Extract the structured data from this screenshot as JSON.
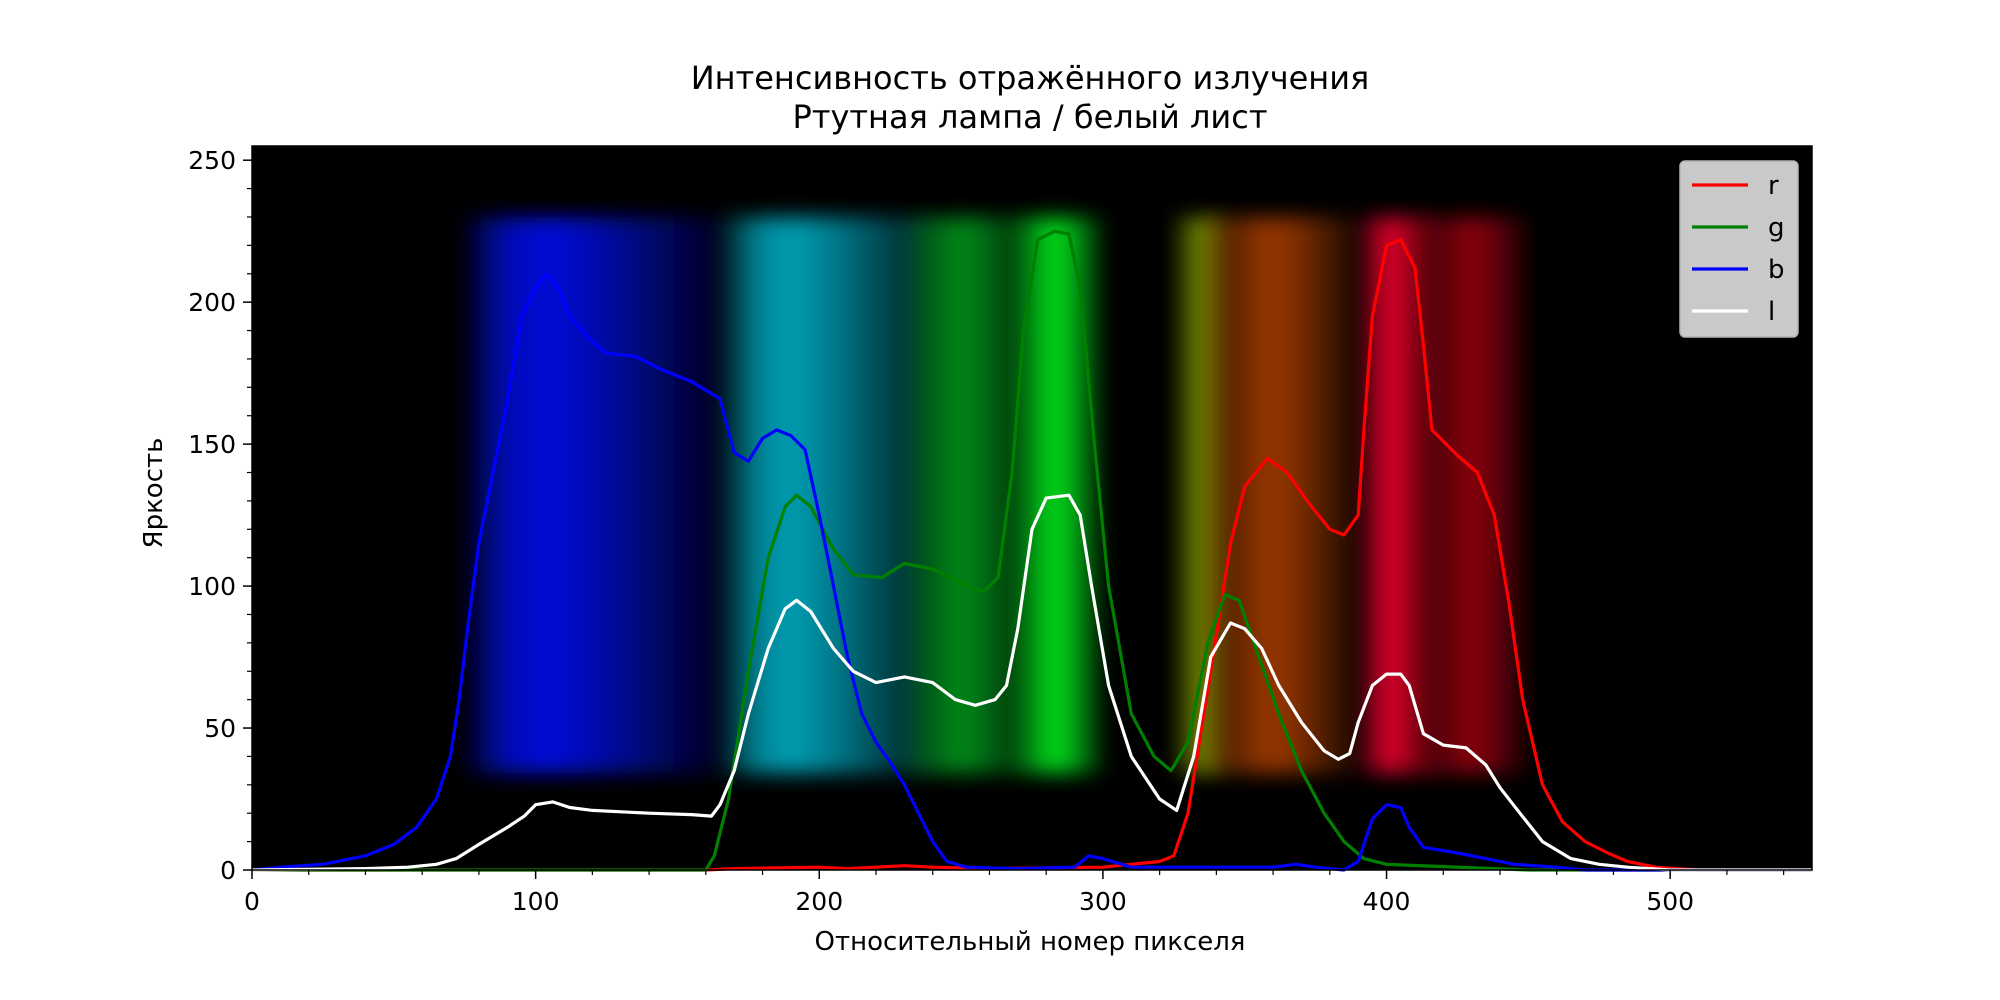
{
  "chart_data": {
    "type": "line",
    "title": "Интенсивность отражённого излучения",
    "subtitle": "Ртутная лампа / белый лист",
    "xlabel": "Относительный номер пикселя",
    "ylabel": "Яркость",
    "xlim": [
      0,
      550
    ],
    "ylim": [
      0,
      255
    ],
    "xticks": [
      0,
      100,
      200,
      300,
      400,
      500
    ],
    "yticks": [
      0,
      50,
      100,
      150,
      200,
      250
    ],
    "xtick_labels": [
      "0",
      "100",
      "200",
      "300",
      "400",
      "500"
    ],
    "ytick_labels": [
      "0",
      "50",
      "100",
      "150",
      "200",
      "250"
    ],
    "legend_position": "top-right",
    "grid": false,
    "background": "spectrum photograph on black",
    "series": [
      {
        "name": "r",
        "color": "#ff0000",
        "points": [
          [
            0,
            0
          ],
          [
            160,
            0
          ],
          [
            170,
            0.5
          ],
          [
            200,
            1
          ],
          [
            210,
            0.5
          ],
          [
            230,
            1.5
          ],
          [
            240,
            1
          ],
          [
            260,
            0.5
          ],
          [
            300,
            1
          ],
          [
            310,
            2
          ],
          [
            320,
            3
          ],
          [
            325,
            5
          ],
          [
            330,
            20
          ],
          [
            338,
            70
          ],
          [
            345,
            115
          ],
          [
            350,
            135
          ],
          [
            358,
            145
          ],
          [
            365,
            140
          ],
          [
            372,
            130
          ],
          [
            380,
            120
          ],
          [
            385,
            118
          ],
          [
            390,
            125
          ],
          [
            392,
            155
          ],
          [
            395,
            195
          ],
          [
            400,
            220
          ],
          [
            405,
            222
          ],
          [
            410,
            212
          ],
          [
            413,
            185
          ],
          [
            416,
            155
          ],
          [
            425,
            146
          ],
          [
            432,
            140
          ],
          [
            438,
            125
          ],
          [
            443,
            95
          ],
          [
            448,
            60
          ],
          [
            455,
            30
          ],
          [
            462,
            17
          ],
          [
            470,
            10
          ],
          [
            478,
            6
          ],
          [
            485,
            3
          ],
          [
            495,
            1
          ],
          [
            510,
            0
          ],
          [
            550,
            0
          ]
        ]
      },
      {
        "name": "g",
        "color": "#008000",
        "points": [
          [
            0,
            0
          ],
          [
            160,
            0
          ],
          [
            163,
            5
          ],
          [
            168,
            25
          ],
          [
            175,
            70
          ],
          [
            182,
            110
          ],
          [
            188,
            128
          ],
          [
            192,
            132
          ],
          [
            197,
            128
          ],
          [
            205,
            113
          ],
          [
            212,
            104
          ],
          [
            222,
            103
          ],
          [
            230,
            108
          ],
          [
            240,
            106
          ],
          [
            252,
            100
          ],
          [
            258,
            98
          ],
          [
            263,
            103
          ],
          [
            268,
            140
          ],
          [
            272,
            190
          ],
          [
            277,
            222
          ],
          [
            283,
            225
          ],
          [
            288,
            224
          ],
          [
            292,
            205
          ],
          [
            297,
            150
          ],
          [
            302,
            100
          ],
          [
            310,
            55
          ],
          [
            318,
            40
          ],
          [
            324,
            35
          ],
          [
            330,
            45
          ],
          [
            337,
            80
          ],
          [
            343,
            97
          ],
          [
            348,
            95
          ],
          [
            355,
            75
          ],
          [
            362,
            55
          ],
          [
            370,
            35
          ],
          [
            378,
            20
          ],
          [
            385,
            10
          ],
          [
            392,
            4
          ],
          [
            400,
            2
          ],
          [
            450,
            0
          ],
          [
            550,
            0
          ]
        ]
      },
      {
        "name": "b",
        "color": "#0000ff",
        "points": [
          [
            0,
            0
          ],
          [
            10,
            1
          ],
          [
            25,
            2
          ],
          [
            40,
            5
          ],
          [
            50,
            9
          ],
          [
            58,
            15
          ],
          [
            65,
            25
          ],
          [
            70,
            40
          ],
          [
            73,
            60
          ],
          [
            76,
            85
          ],
          [
            80,
            115
          ],
          [
            85,
            140
          ],
          [
            90,
            165
          ],
          [
            95,
            195
          ],
          [
            100,
            205
          ],
          [
            104,
            210
          ],
          [
            108,
            205
          ],
          [
            112,
            195
          ],
          [
            118,
            188
          ],
          [
            125,
            182
          ],
          [
            135,
            181
          ],
          [
            145,
            176
          ],
          [
            155,
            172
          ],
          [
            165,
            166
          ],
          [
            170,
            147
          ],
          [
            175,
            144
          ],
          [
            180,
            152
          ],
          [
            185,
            155
          ],
          [
            190,
            153
          ],
          [
            195,
            148
          ],
          [
            200,
            125
          ],
          [
            205,
            100
          ],
          [
            210,
            75
          ],
          [
            215,
            55
          ],
          [
            220,
            45
          ],
          [
            225,
            38
          ],
          [
            230,
            30
          ],
          [
            235,
            20
          ],
          [
            240,
            10
          ],
          [
            245,
            3
          ],
          [
            252,
            1
          ],
          [
            270,
            0.5
          ],
          [
            290,
            1
          ],
          [
            295,
            5
          ],
          [
            300,
            4
          ],
          [
            310,
            1
          ],
          [
            360,
            1
          ],
          [
            368,
            2
          ],
          [
            375,
            1
          ],
          [
            385,
            0
          ],
          [
            390,
            3
          ],
          [
            395,
            18
          ],
          [
            400,
            23
          ],
          [
            405,
            22
          ],
          [
            408,
            15
          ],
          [
            413,
            8
          ],
          [
            425,
            6
          ],
          [
            435,
            4
          ],
          [
            445,
            2
          ],
          [
            460,
            1
          ],
          [
            470,
            0
          ],
          [
            550,
            0
          ]
        ]
      },
      {
        "name": "l",
        "color": "#ffffff",
        "points": [
          [
            0,
            0
          ],
          [
            40,
            0.5
          ],
          [
            55,
            1
          ],
          [
            65,
            2
          ],
          [
            72,
            4
          ],
          [
            80,
            9
          ],
          [
            90,
            15
          ],
          [
            96,
            19
          ],
          [
            100,
            23
          ],
          [
            106,
            24
          ],
          [
            112,
            22
          ],
          [
            120,
            21
          ],
          [
            140,
            20
          ],
          [
            155,
            19.5
          ],
          [
            162,
            19
          ],
          [
            165,
            23
          ],
          [
            170,
            35
          ],
          [
            175,
            55
          ],
          [
            182,
            78
          ],
          [
            188,
            92
          ],
          [
            192,
            95
          ],
          [
            197,
            91
          ],
          [
            205,
            78
          ],
          [
            212,
            70
          ],
          [
            220,
            66
          ],
          [
            230,
            68
          ],
          [
            240,
            66
          ],
          [
            248,
            60
          ],
          [
            255,
            58
          ],
          [
            262,
            60
          ],
          [
            266,
            65
          ],
          [
            270,
            85
          ],
          [
            275,
            120
          ],
          [
            280,
            131
          ],
          [
            288,
            132
          ],
          [
            292,
            125
          ],
          [
            296,
            100
          ],
          [
            302,
            65
          ],
          [
            310,
            40
          ],
          [
            320,
            25
          ],
          [
            326,
            21
          ],
          [
            332,
            40
          ],
          [
            338,
            75
          ],
          [
            345,
            87
          ],
          [
            350,
            85
          ],
          [
            356,
            78
          ],
          [
            362,
            65
          ],
          [
            370,
            52
          ],
          [
            378,
            42
          ],
          [
            383,
            39
          ],
          [
            387,
            41
          ],
          [
            390,
            52
          ],
          [
            395,
            65
          ],
          [
            400,
            69
          ],
          [
            405,
            69
          ],
          [
            408,
            65
          ],
          [
            413,
            48
          ],
          [
            420,
            44
          ],
          [
            428,
            43
          ],
          [
            435,
            37
          ],
          [
            440,
            29
          ],
          [
            447,
            20
          ],
          [
            455,
            10
          ],
          [
            465,
            4
          ],
          [
            475,
            2
          ],
          [
            485,
            1
          ],
          [
            500,
            0
          ],
          [
            550,
            0
          ]
        ]
      }
    ],
    "spectrum_bands": [
      {
        "from": 75,
        "to": 165,
        "color": "#0010ff",
        "peak": 104
      },
      {
        "from": 165,
        "to": 240,
        "color": "#00b8d0",
        "peak": 190
      },
      {
        "from": 230,
        "to": 275,
        "color": "#00a020",
        "peak": 250
      },
      {
        "from": 268,
        "to": 300,
        "color": "#00ff20",
        "peak": 283
      },
      {
        "from": 325,
        "to": 345,
        "color": "#80a000",
        "peak": 335
      },
      {
        "from": 335,
        "to": 390,
        "color": "#b04000",
        "peak": 360
      },
      {
        "from": 390,
        "to": 418,
        "color": "#ff0030",
        "peak": 402
      },
      {
        "from": 410,
        "to": 450,
        "color": "#a00010",
        "peak": 430
      }
    ]
  }
}
